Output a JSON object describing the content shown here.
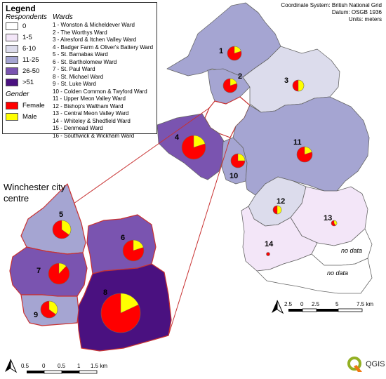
{
  "legend": {
    "title": "Legend",
    "respondents_heading": "Respondents",
    "wards_heading": "Wards",
    "classes": [
      {
        "label": "0",
        "color": "#ffffff"
      },
      {
        "label": "1-5",
        "color": "#f3e6f8"
      },
      {
        "label": "6-10",
        "color": "#dcdcec"
      },
      {
        "label": "11-25",
        "color": "#a5a5d2"
      },
      {
        "label": "26-50",
        "color": "#7a54b0"
      },
      {
        "label": ">51",
        "color": "#4a1180"
      }
    ],
    "gender_heading": "Gender",
    "gender": [
      {
        "label": "Female",
        "color": "#ff0000"
      },
      {
        "label": "Male",
        "color": "#ffff00"
      }
    ],
    "wards": [
      "1 - Wonston & Micheldever Ward",
      "2 - The Worthys Ward",
      "3 - Alresford & Itchen Valley Ward",
      "4 - Badger Farm & Oliver's Battery Ward",
      "5 - St. Barnabas Ward",
      "6 - St. Bartholomew Ward",
      "7 - St. Paul Ward",
      "8 - St. Michael Ward",
      "9 - St. Luke Ward",
      "10 - Colden Common & Twyford Ward",
      "11 - Upper Meon Valley Ward",
      "12 - Bishop's Waltham Ward",
      "13 - Central Meon Valley Ward",
      "14 - Whiteley & Shedfield Ward",
      "15 - Denmead Ward",
      "16 - Southwick & Wickham Ward"
    ]
  },
  "coordinate_info": [
    "Coordinate System: British National Grid",
    "Datum: OSGB 1936",
    "Units: meters"
  ],
  "inset_title": "Winchester city centre",
  "ward_labels": [
    {
      "id": "1",
      "female_share": 0.8
    },
    {
      "id": "2",
      "female_share": 0.8
    },
    {
      "id": "3",
      "female_share": 0.5
    },
    {
      "id": "4",
      "female_share": 0.8
    },
    {
      "id": "5",
      "female_share": 0.65
    },
    {
      "id": "6",
      "female_share": 0.8
    },
    {
      "id": "7",
      "female_share": 0.88
    },
    {
      "id": "8",
      "female_share": 0.82
    },
    {
      "id": "9",
      "female_share": 0.65
    },
    {
      "id": "10",
      "female_share": 0.75
    },
    {
      "id": "11",
      "female_share": 0.8
    },
    {
      "id": "12",
      "female_share": 0.5
    },
    {
      "id": "13",
      "female_share": 0.6
    },
    {
      "id": "14",
      "female_share": 1.0
    }
  ],
  "no_data_label": "no data",
  "main_scale": {
    "ticks": [
      "2.5",
      "0",
      "2.5",
      "5",
      "7.5 km"
    ]
  },
  "inset_scale": {
    "ticks": [
      "0.5",
      "0",
      "0.5",
      "1",
      "1.5 km"
    ]
  },
  "logo_text": "QGIS",
  "colors": {
    "female": "#ff0000",
    "male": "#ffff00",
    "inset_border": "#c83232"
  }
}
